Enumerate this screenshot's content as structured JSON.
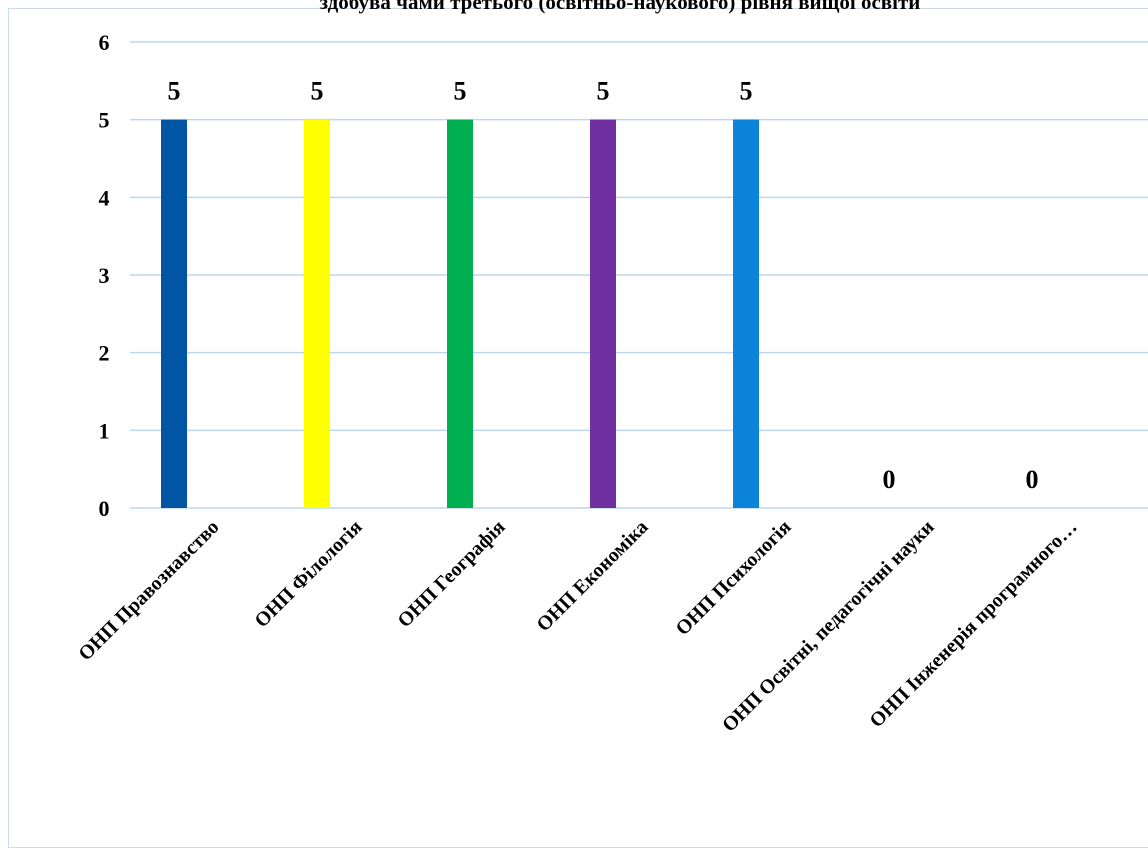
{
  "chart_data": {
    "type": "bar",
    "title": "здобува чами третього (освітньо-наукового) рівня вищої освіти",
    "categories": [
      "ОНП Правознавство",
      "ОНП Філологія",
      "ОНП Географія",
      "ОНП Економіка",
      "ОНП Психологія",
      "ОНП Освітні, педагогічні науки",
      "ОНП Інженерія програмного…"
    ],
    "values": [
      5,
      5,
      5,
      5,
      5,
      0,
      0
    ],
    "colors": [
      "#0055a5",
      "#ffff00",
      "#00b050",
      "#7030a0",
      "#0b84d9",
      "#0b84d9",
      "#0b84d9"
    ],
    "ylim": [
      0,
      6
    ],
    "yticks": [
      "0",
      "1",
      "2",
      "3",
      "4",
      "5",
      "6"
    ],
    "grid": true,
    "grid_color": "#bdd7ee",
    "data_labels": true,
    "legend": "none"
  }
}
